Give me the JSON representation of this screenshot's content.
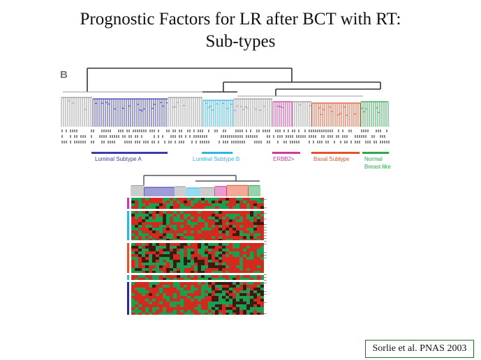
{
  "slide": {
    "title_line_1": "Prognostic Factors for LR after BCT with RT:",
    "title_line_2": "Sub-types",
    "citation": "Sorlie et al. PNAS 2003"
  },
  "figure": {
    "panel_label": "B",
    "subtypes": [
      {
        "label": "Luminal Subtype A",
        "color": "#3b3bb0"
      },
      {
        "label": "Luminal Subtype B",
        "color": "#2fb4e6"
      },
      {
        "label": "ERBB2+",
        "color": "#d2399f"
      },
      {
        "label": "Basal Subtype",
        "color": "#e4532c"
      },
      {
        "label": "Normal",
        "label_line_2": "Breast-like",
        "color": "#2fa652"
      }
    ],
    "colors": {
      "tree_grey": "#9a9a9a",
      "tree_dark": "#333333",
      "heatmap_red": "#d42a1e",
      "heatmap_green": "#18a050",
      "heatmap_dark": "#3a1a12",
      "row_bar_blue": "#2a2aa0",
      "row_bar_orange": "#e4532c",
      "row_bar_cyan": "#2fb4e6",
      "row_bar_magenta": "#d2399f"
    }
  }
}
